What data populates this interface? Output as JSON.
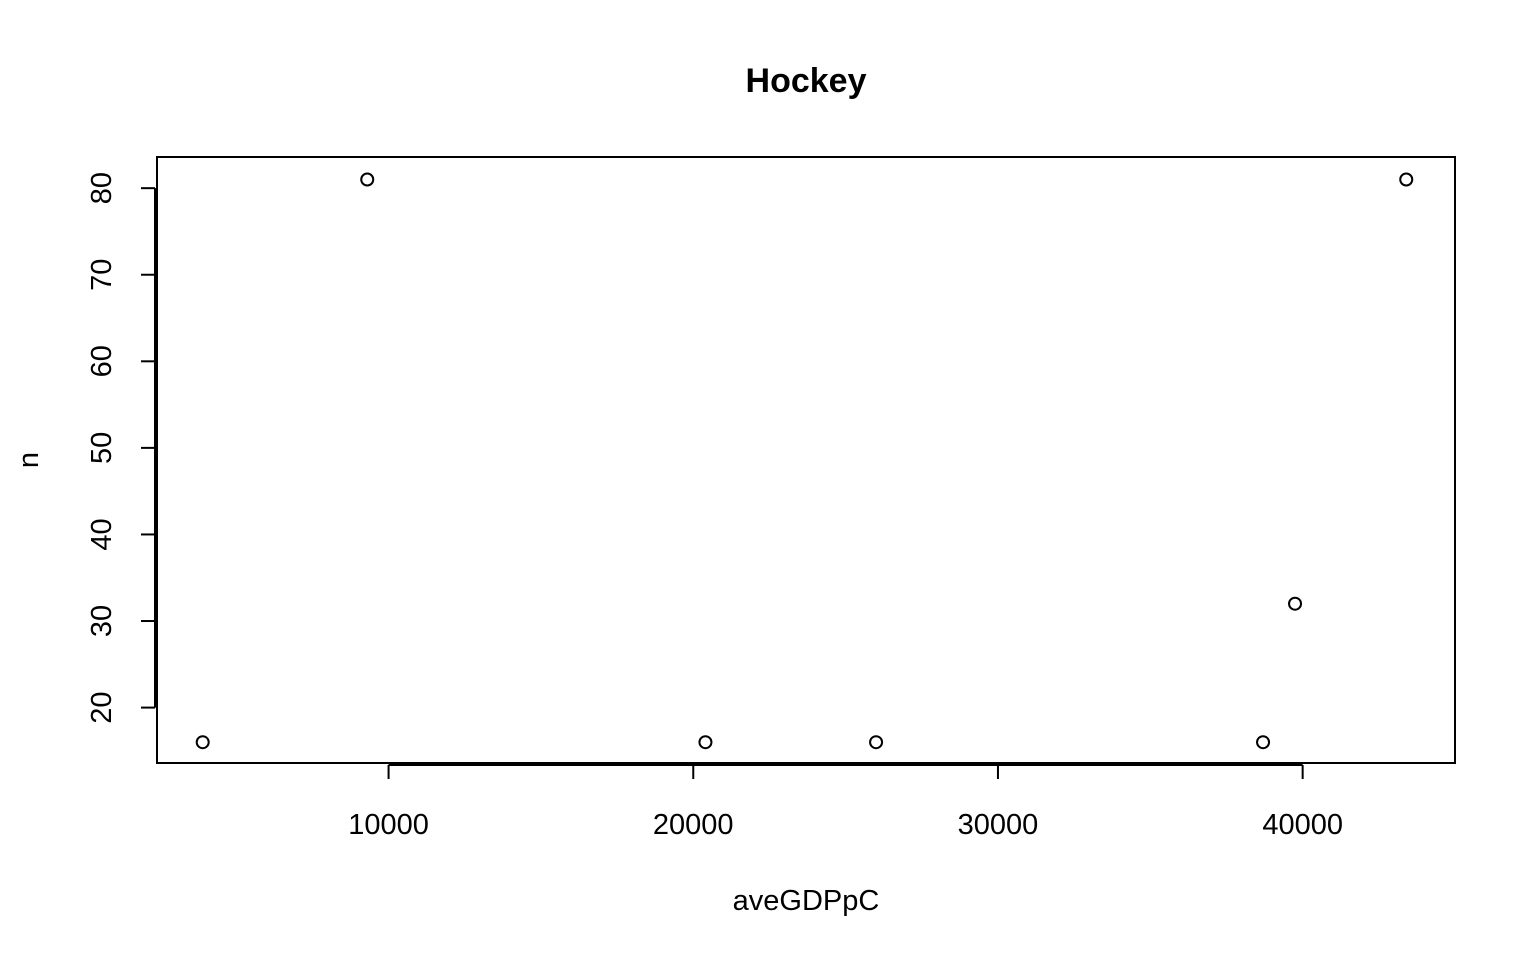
{
  "chart_data": {
    "type": "scatter",
    "title": "Hockey",
    "xlabel": "aveGDPpC",
    "ylabel": "n",
    "xlim": [
      2400,
      45000
    ],
    "ylim": [
      13.6,
      83.6
    ],
    "xticks": [
      10000,
      20000,
      30000,
      40000
    ],
    "xtick_labels": [
      "10000",
      "20000",
      "30000",
      "40000"
    ],
    "yticks": [
      20,
      30,
      40,
      50,
      60,
      70,
      80
    ],
    "ytick_labels": [
      "20",
      "30",
      "40",
      "50",
      "60",
      "70",
      "80"
    ],
    "grid": false,
    "legend": "none",
    "marker": "open-circle",
    "points": [
      {
        "x": 3900,
        "y": 16
      },
      {
        "x": 9300,
        "y": 81
      },
      {
        "x": 20400,
        "y": 16
      },
      {
        "x": 26000,
        "y": 16
      },
      {
        "x": 38700,
        "y": 16
      },
      {
        "x": 39750,
        "y": 32
      },
      {
        "x": 43400,
        "y": 81
      }
    ]
  }
}
